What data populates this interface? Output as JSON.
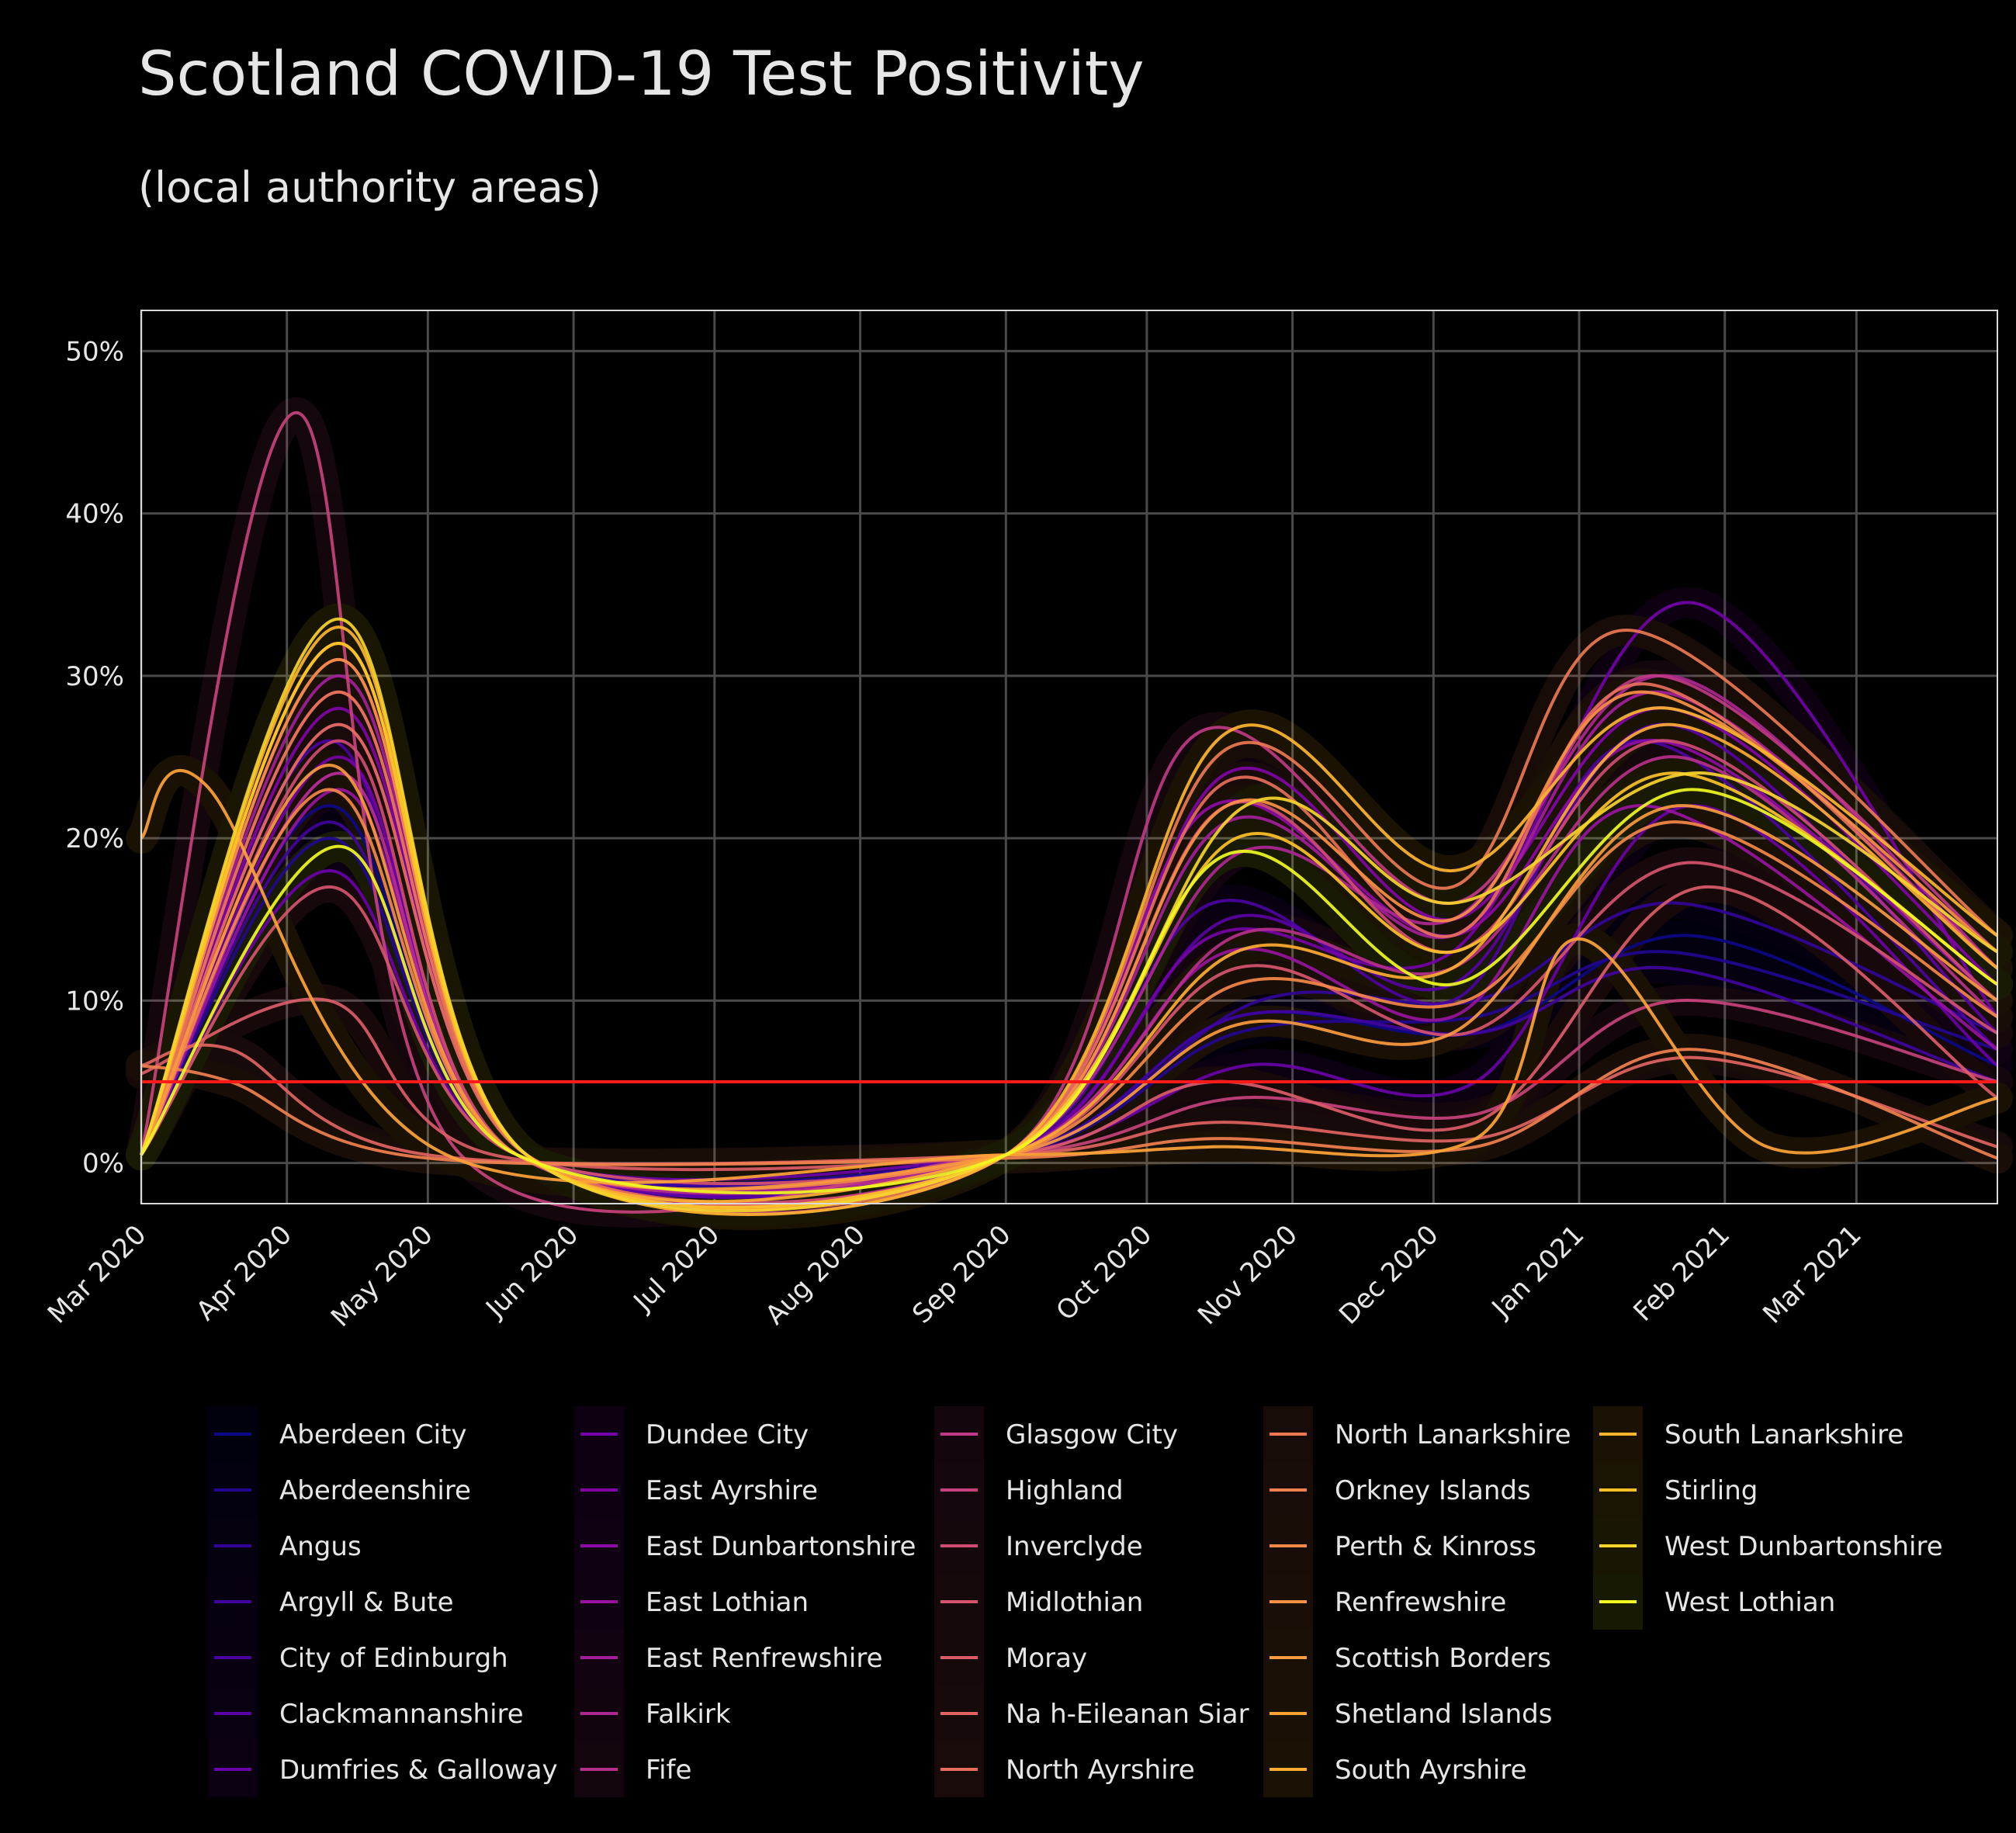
{
  "chart_data": {
    "type": "line",
    "title": "Scotland COVID-19 Test Positivity",
    "subtitle": "(local authority areas)",
    "xlabel": "",
    "ylabel": "",
    "x_range": [
      "2020-03-01",
      "2021-03-31"
    ],
    "ylim": [
      -2.5,
      52.5
    ],
    "y_ticks": [
      0,
      10,
      20,
      30,
      40,
      50
    ],
    "y_tick_labels": [
      "0%",
      "10%",
      "20%",
      "30%",
      "40%",
      "50%"
    ],
    "x_ticks": [
      "2020-03-01",
      "2020-04-01",
      "2020-05-01",
      "2020-06-01",
      "2020-07-01",
      "2020-08-01",
      "2020-09-01",
      "2020-10-01",
      "2020-11-01",
      "2020-12-01",
      "2021-01-01",
      "2021-02-01",
      "2021-03-01"
    ],
    "x_tick_labels": [
      "Mar 2020",
      "Apr 2020",
      "May 2020",
      "Jun 2020",
      "Jul 2020",
      "Aug 2020",
      "Sep 2020",
      "Oct 2020",
      "Nov 2020",
      "Dec 2020",
      "Jan 2021",
      "Feb 2021",
      "Mar 2021"
    ],
    "grid": true,
    "legend_position": "bottom",
    "reference_line": {
      "y": 5,
      "color": "#ff1a1a"
    },
    "series": [
      {
        "name": "Aberdeen City",
        "color": "#0d0887",
        "x": [
          "2020-03-01",
          "2020-04-10",
          "2020-05-20",
          "2020-09-01",
          "2020-10-20",
          "2020-12-10",
          "2021-01-25",
          "2021-03-31"
        ],
        "values": [
          0.5,
          22,
          0.5,
          0.5,
          9,
          8,
          14,
          6
        ]
      },
      {
        "name": "Aberdeenshire",
        "color": "#220690",
        "x": [
          "2020-03-01",
          "2020-04-10",
          "2020-05-20",
          "2020-09-01",
          "2020-10-20",
          "2020-12-10",
          "2021-01-20",
          "2021-03-31"
        ],
        "values": [
          0.5,
          20,
          0.5,
          0.5,
          8,
          9,
          13,
          7
        ]
      },
      {
        "name": "Angus",
        "color": "#310597",
        "x": [
          "2020-03-01",
          "2020-04-12",
          "2020-05-20",
          "2020-09-01",
          "2020-10-25",
          "2020-12-10",
          "2021-01-22",
          "2021-03-31"
        ],
        "values": [
          0.5,
          24,
          0.5,
          0.5,
          10,
          10,
          16,
          8
        ]
      },
      {
        "name": "Argyll & Bute",
        "color": "#40049d",
        "x": [
          "2020-03-01",
          "2020-04-10",
          "2020-05-20",
          "2020-09-01",
          "2020-10-20",
          "2020-12-10",
          "2021-01-20",
          "2021-03-31"
        ],
        "values": [
          0.5,
          21,
          0.5,
          0.5,
          9,
          8,
          12,
          5
        ]
      },
      {
        "name": "City of Edinburgh",
        "color": "#4c02a1",
        "x": [
          "2020-03-01",
          "2020-04-10",
          "2020-05-20",
          "2020-09-01",
          "2020-10-15",
          "2020-12-05",
          "2021-01-15",
          "2021-03-31"
        ],
        "values": [
          0.5,
          26,
          0.5,
          0.5,
          16,
          10,
          26,
          7
        ]
      },
      {
        "name": "Clackmannanshire",
        "color": "#5901a5",
        "x": [
          "2020-03-01",
          "2020-04-12",
          "2020-05-22",
          "2020-09-01",
          "2020-10-18",
          "2020-12-05",
          "2021-01-20",
          "2021-03-31"
        ],
        "values": [
          0.5,
          27,
          0.5,
          0.5,
          15,
          11,
          27,
          8
        ]
      },
      {
        "name": "Dumfries & Galloway",
        "color": "#6a00a8",
        "x": [
          "2020-03-01",
          "2020-04-10",
          "2020-05-20",
          "2020-09-01",
          "2020-10-22",
          "2020-12-10",
          "2021-01-25",
          "2021-03-31"
        ],
        "values": [
          0.5,
          18,
          0.5,
          0.5,
          6,
          5,
          22,
          6
        ]
      },
      {
        "name": "Dundee City",
        "color": "#7401a8",
        "x": [
          "2020-03-01",
          "2020-04-12",
          "2020-05-20",
          "2020-09-01",
          "2020-10-15",
          "2020-12-05",
          "2021-01-25",
          "2021-03-31"
        ],
        "values": [
          0.5,
          25,
          0.5,
          0.5,
          14,
          13,
          34.5,
          9
        ]
      },
      {
        "name": "East Ayrshire",
        "color": "#8104a7",
        "x": [
          "2020-03-01",
          "2020-04-12",
          "2020-05-22",
          "2020-09-01",
          "2020-10-18",
          "2020-12-05",
          "2021-01-20",
          "2021-03-31"
        ],
        "values": [
          0.5,
          28,
          0.5,
          0.5,
          24,
          15,
          28,
          11
        ]
      },
      {
        "name": "East Dunbartonshire",
        "color": "#8d0ba5",
        "x": [
          "2020-03-01",
          "2020-04-12",
          "2020-05-22",
          "2020-09-01",
          "2020-10-15",
          "2020-12-05",
          "2021-01-18",
          "2021-03-31"
        ],
        "values": [
          0.5,
          29,
          0.5,
          0.5,
          22,
          14,
          26,
          10
        ]
      },
      {
        "name": "East Lothian",
        "color": "#9814a0",
        "x": [
          "2020-03-01",
          "2020-04-12",
          "2020-05-20",
          "2020-09-01",
          "2020-10-18",
          "2020-12-05",
          "2021-01-15",
          "2021-03-31"
        ],
        "values": [
          0.5,
          23,
          0.5,
          0.5,
          13,
          9,
          22,
          7
        ]
      },
      {
        "name": "East Renfrewshire",
        "color": "#a31e9a",
        "x": [
          "2020-03-01",
          "2020-04-12",
          "2020-05-22",
          "2020-09-01",
          "2020-10-18",
          "2020-12-05",
          "2021-01-18",
          "2021-03-31"
        ],
        "values": [
          0.5,
          30,
          0.5,
          0.5,
          21,
          14,
          29,
          12
        ]
      },
      {
        "name": "Falkirk",
        "color": "#ad2793",
        "x": [
          "2020-03-01",
          "2020-04-12",
          "2020-05-22",
          "2020-09-01",
          "2020-10-20",
          "2020-12-05",
          "2021-01-20",
          "2021-03-31"
        ],
        "values": [
          0.5,
          31,
          0.5,
          0.5,
          19,
          15,
          30,
          12
        ]
      },
      {
        "name": "Fife",
        "color": "#b6308b",
        "x": [
          "2020-03-01",
          "2020-04-12",
          "2020-05-20",
          "2020-09-01",
          "2020-10-20",
          "2020-12-05",
          "2021-01-22",
          "2021-03-31"
        ],
        "values": [
          0.5,
          24,
          0.5,
          0.5,
          14,
          12,
          25,
          9
        ]
      },
      {
        "name": "Glasgow City",
        "color": "#bf3984",
        "x": [
          "2020-03-01",
          "2020-04-12",
          "2020-05-22",
          "2020-09-01",
          "2020-10-12",
          "2020-12-05",
          "2021-01-18",
          "2021-03-31"
        ],
        "values": [
          0.5,
          32,
          0.5,
          0.5,
          26.5,
          16,
          30,
          13
        ]
      },
      {
        "name": "Highland",
        "color": "#c7427c",
        "x": [
          "2020-03-01",
          "2020-04-03",
          "2020-05-08",
          "2020-09-01",
          "2020-10-20",
          "2020-12-10",
          "2021-01-22",
          "2021-03-31"
        ],
        "values": [
          0.5,
          46.2,
          0.5,
          0.5,
          4,
          3,
          10,
          5
        ]
      },
      {
        "name": "Inverclyde",
        "color": "#cf4c74",
        "x": [
          "2020-03-01",
          "2020-04-12",
          "2020-05-20",
          "2020-09-01",
          "2020-10-18",
          "2020-12-05",
          "2021-01-20",
          "2021-03-31"
        ],
        "values": [
          0.5,
          26,
          0.5,
          0.5,
          22,
          13,
          26,
          10
        ]
      },
      {
        "name": "Midlothian",
        "color": "#d5546e",
        "x": [
          "2020-03-01",
          "2020-04-10",
          "2020-05-20",
          "2020-09-01",
          "2020-10-20",
          "2020-12-08",
          "2021-01-25",
          "2021-03-31"
        ],
        "values": [
          0.5,
          17,
          0.5,
          0.5,
          12,
          8,
          18.5,
          8
        ]
      },
      {
        "name": "Moray",
        "color": "#db5c68",
        "x": [
          "2020-03-01",
          "2020-04-10",
          "2020-05-15",
          "2020-09-01",
          "2020-10-15",
          "2020-12-10",
          "2021-01-28",
          "2021-03-31"
        ],
        "values": [
          5.5,
          10,
          0.5,
          0.5,
          5,
          2.5,
          17,
          4
        ]
      },
      {
        "name": "Na h-Eileanan Siar",
        "color": "#e16462",
        "x": [
          "2020-03-01",
          "2020-03-20",
          "2020-05-01",
          "2020-09-01",
          "2020-10-15",
          "2020-12-10",
          "2021-01-25",
          "2021-03-31"
        ],
        "values": [
          6,
          7,
          0.5,
          0.5,
          2.5,
          1.5,
          6.5,
          1
        ]
      },
      {
        "name": "North Ayrshire",
        "color": "#e76f5a",
        "x": [
          "2020-03-01",
          "2020-04-12",
          "2020-05-22",
          "2020-09-01",
          "2020-10-18",
          "2020-12-05",
          "2021-01-15",
          "2021-03-31"
        ],
        "values": [
          0.5,
          27,
          0.5,
          0.5,
          23.5,
          14,
          29.5,
          12
        ]
      },
      {
        "name": "North Lanarkshire",
        "color": "#ec7853",
        "x": [
          "2020-03-01",
          "2020-04-12",
          "2020-05-22",
          "2020-09-01",
          "2020-10-18",
          "2020-12-05",
          "2021-01-12",
          "2021-03-31"
        ],
        "values": [
          0.5,
          29,
          0.5,
          0.5,
          25.5,
          17,
          32.8,
          14
        ]
      },
      {
        "name": "Orkney Islands",
        "color": "#f0804e",
        "x": [
          "2020-03-01",
          "2020-03-20",
          "2020-05-01",
          "2020-09-01",
          "2020-10-15",
          "2020-12-10",
          "2021-01-25",
          "2021-03-31"
        ],
        "values": [
          6,
          5,
          0.3,
          0.3,
          1.5,
          1,
          7,
          0.3
        ]
      },
      {
        "name": "Perth & Kinross",
        "color": "#f48849",
        "x": [
          "2020-03-01",
          "2020-04-10",
          "2020-05-20",
          "2020-09-01",
          "2020-10-20",
          "2020-12-08",
          "2021-01-22",
          "2021-03-31"
        ],
        "values": [
          0.5,
          23,
          0.5,
          0.5,
          11,
          10,
          21,
          9
        ]
      },
      {
        "name": "Renfrewshire",
        "color": "#f79044",
        "x": [
          "2020-03-01",
          "2020-04-12",
          "2020-05-22",
          "2020-09-01",
          "2020-10-18",
          "2020-12-05",
          "2021-01-15",
          "2021-03-31"
        ],
        "values": [
          0.5,
          31,
          0.5,
          0.5,
          22,
          15,
          29,
          13
        ]
      },
      {
        "name": "Scottish Borders",
        "color": "#fa9a3e",
        "x": [
          "2020-03-01",
          "2020-04-10",
          "2020-05-20",
          "2020-09-01",
          "2020-10-20",
          "2020-12-05",
          "2021-01-22",
          "2021-03-31"
        ],
        "values": [
          0.5,
          24.5,
          0.5,
          0.5,
          8.5,
          8,
          22,
          10
        ]
      },
      {
        "name": "Shetland Islands",
        "color": "#fca338",
        "x": [
          "2020-03-01",
          "2020-03-15",
          "2020-05-05",
          "2020-09-01",
          "2020-10-15",
          "2020-12-10",
          "2021-01-01",
          "2021-02-10",
          "2021-03-31"
        ],
        "values": [
          20,
          23.2,
          0.5,
          0.5,
          1,
          1.5,
          13.8,
          1,
          4
        ]
      },
      {
        "name": "South Ayrshire",
        "color": "#fdad32",
        "x": [
          "2020-03-01",
          "2020-04-12",
          "2020-05-22",
          "2020-09-01",
          "2020-10-20",
          "2020-12-05",
          "2021-01-20",
          "2021-03-31"
        ],
        "values": [
          0.5,
          32,
          0.5,
          0.5,
          13,
          12,
          27,
          12
        ]
      },
      {
        "name": "South Lanarkshire",
        "color": "#fdb52e",
        "x": [
          "2020-03-01",
          "2020-04-12",
          "2020-05-22",
          "2020-09-01",
          "2020-10-18",
          "2020-12-05",
          "2021-01-20",
          "2021-03-31"
        ],
        "values": [
          0.5,
          33,
          0.5,
          0.5,
          26.5,
          18,
          28,
          14
        ]
      },
      {
        "name": "Stirling",
        "color": "#fcc228",
        "x": [
          "2020-03-01",
          "2020-04-12",
          "2020-05-22",
          "2020-09-01",
          "2020-10-20",
          "2020-12-05",
          "2021-01-22",
          "2021-03-31"
        ],
        "values": [
          0.5,
          32,
          0.5,
          0.5,
          20,
          13,
          24,
          11
        ]
      },
      {
        "name": "West Dunbartonshire",
        "color": "#f6d52c",
        "x": [
          "2020-03-01",
          "2020-04-12",
          "2020-05-22",
          "2020-09-01",
          "2020-10-22",
          "2020-12-05",
          "2021-01-28",
          "2021-03-31"
        ],
        "values": [
          0.5,
          33.5,
          0.5,
          0.5,
          22,
          16,
          24,
          13
        ]
      },
      {
        "name": "West Lothian",
        "color": "#f0f921",
        "x": [
          "2020-03-01",
          "2020-04-12",
          "2020-05-20",
          "2020-09-01",
          "2020-10-18",
          "2020-12-05",
          "2021-01-25",
          "2021-03-31"
        ],
        "values": [
          0.5,
          19.5,
          0.5,
          0.5,
          19,
          11,
          23,
          11
        ]
      }
    ]
  }
}
